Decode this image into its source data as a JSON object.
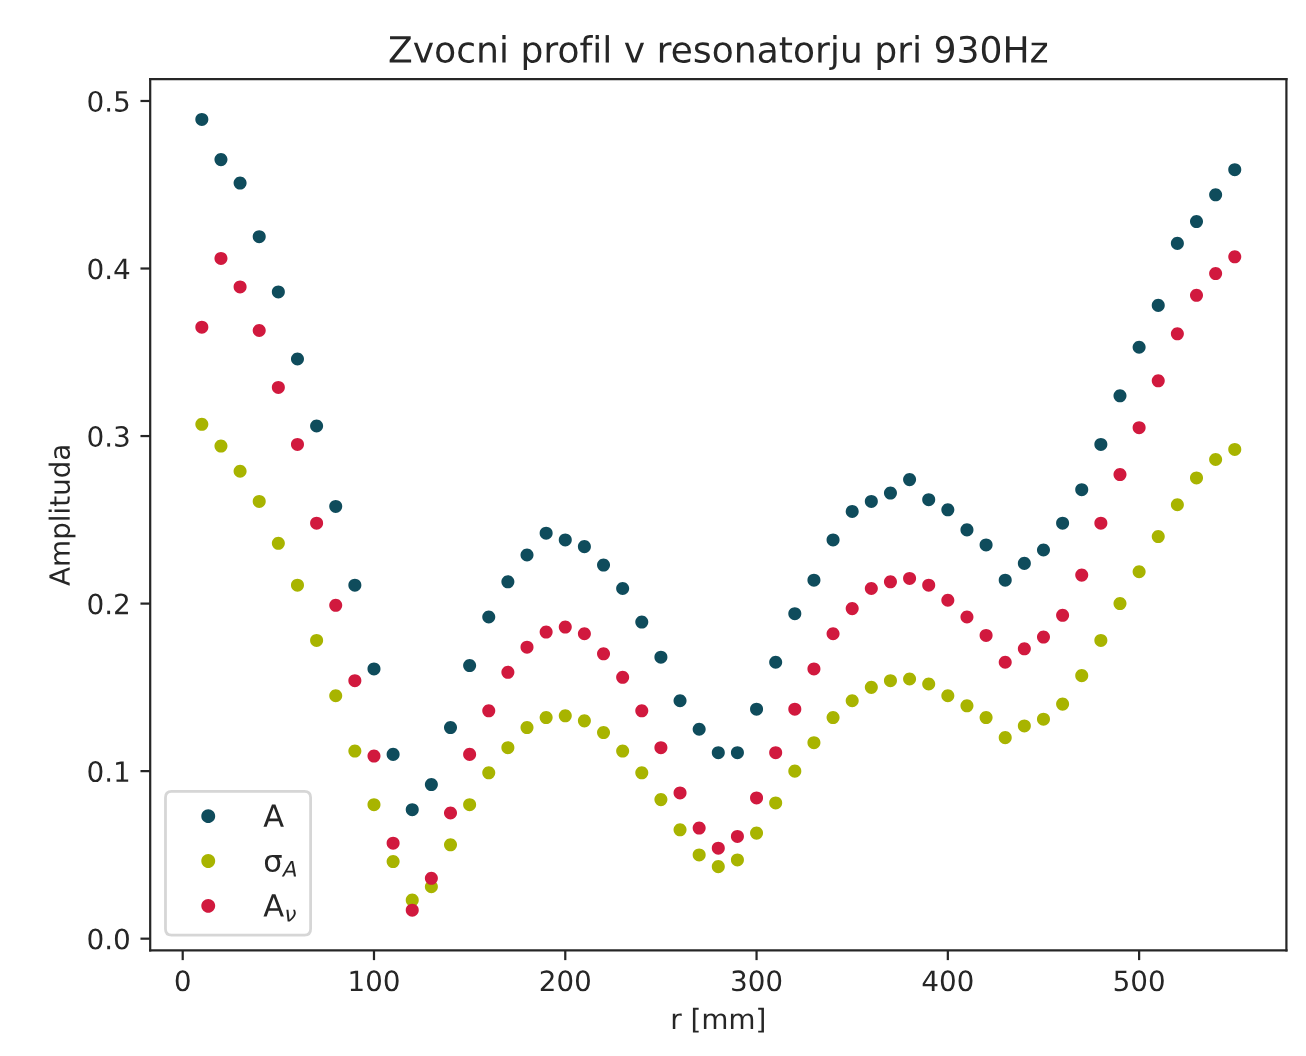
{
  "chart_data": {
    "type": "scatter",
    "title": "Zvocni profil v resonatorju pri 930Hz",
    "xlabel": "r [mm]",
    "ylabel": "Amplituda",
    "x": [
      10,
      20,
      30,
      40,
      50,
      60,
      70,
      80,
      90,
      100,
      110,
      120,
      130,
      140,
      150,
      160,
      170,
      180,
      190,
      200,
      210,
      220,
      230,
      240,
      250,
      260,
      270,
      280,
      290,
      300,
      310,
      320,
      330,
      340,
      350,
      360,
      370,
      380,
      390,
      400,
      410,
      420,
      430,
      440,
      450,
      460,
      470,
      480,
      490,
      500,
      510,
      520,
      530,
      540,
      550
    ],
    "series": [
      {
        "name": "A",
        "color": "#0f4c5c",
        "values": [
          0.489,
          0.465,
          0.451,
          0.419,
          0.386,
          0.346,
          0.306,
          0.258,
          0.211,
          0.161,
          0.11,
          0.077,
          0.092,
          0.126,
          0.163,
          0.192,
          0.213,
          0.229,
          0.242,
          0.238,
          0.234,
          0.223,
          0.209,
          0.189,
          0.168,
          0.142,
          0.125,
          0.111,
          0.111,
          0.137,
          0.165,
          0.194,
          0.214,
          0.238,
          0.255,
          0.261,
          0.266,
          0.274,
          0.262,
          0.256,
          0.244,
          0.235,
          0.214,
          0.224,
          0.232,
          0.248,
          0.268,
          0.295,
          0.324,
          0.353,
          0.378,
          0.415,
          0.428,
          0.444,
          0.459
        ]
      },
      {
        "name": "σ$_{A}$",
        "color": "#a8b400",
        "values": [
          0.307,
          0.294,
          0.279,
          0.261,
          0.236,
          0.211,
          0.178,
          0.145,
          0.112,
          0.08,
          0.046,
          0.023,
          0.031,
          0.056,
          0.08,
          0.099,
          0.114,
          0.126,
          0.132,
          0.133,
          0.13,
          0.123,
          0.112,
          0.099,
          0.083,
          0.065,
          0.05,
          0.043,
          0.047,
          0.063,
          0.081,
          0.1,
          0.117,
          0.132,
          0.142,
          0.15,
          0.154,
          0.155,
          0.152,
          0.145,
          0.139,
          0.132,
          0.12,
          0.127,
          0.131,
          0.14,
          0.157,
          0.178,
          0.2,
          0.219,
          0.24,
          0.259,
          0.275,
          0.286,
          0.292
        ]
      },
      {
        "name": "A$_{ν}$",
        "color": "#d1193e",
        "values": [
          0.365,
          0.406,
          0.389,
          0.363,
          0.329,
          0.295,
          0.248,
          0.199,
          0.154,
          0.109,
          0.057,
          0.017,
          0.036,
          0.075,
          0.11,
          0.136,
          0.159,
          0.174,
          0.183,
          0.186,
          0.182,
          0.17,
          0.156,
          0.136,
          0.114,
          0.087,
          0.066,
          0.054,
          0.061,
          0.084,
          0.111,
          0.137,
          0.161,
          0.182,
          0.197,
          0.209,
          0.213,
          0.215,
          0.211,
          0.202,
          0.192,
          0.181,
          0.165,
          0.173,
          0.18,
          0.193,
          0.217,
          0.248,
          0.277,
          0.305,
          0.333,
          0.361,
          0.384,
          0.397,
          0.407
        ]
      }
    ],
    "xlim": [
      -17,
      577
    ],
    "ylim": [
      -0.007,
      0.513
    ],
    "xticks": [
      0,
      100,
      200,
      300,
      400,
      500
    ],
    "yticks": [
      {
        "value": 0,
        "label": "0.0"
      },
      0.1,
      0.2,
      0.3,
      0.4,
      0.5
    ],
    "grid": false,
    "legend": "lower left",
    "marker": "circle"
  }
}
